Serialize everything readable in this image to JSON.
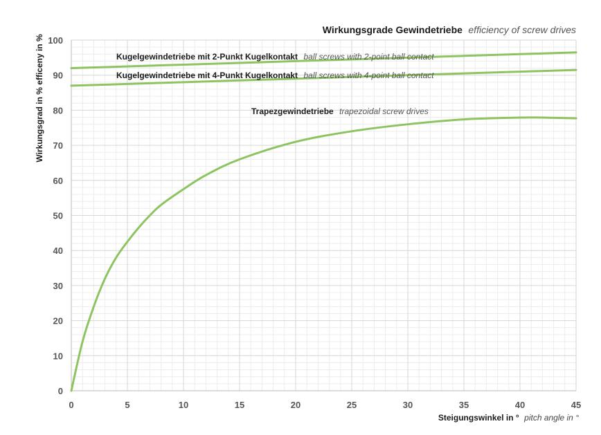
{
  "chart_data": {
    "type": "line",
    "title": "Wirkungsgrade Gewindetriebe",
    "subtitle": "efficiency of screw drives",
    "xlabel": "Steigungswinkel in °",
    "xlabel_en": "pitch angle in °",
    "ylabel": "Wirkungsgrad in % efficeny in %",
    "xlim": [
      0,
      45
    ],
    "ylim": [
      0,
      100
    ],
    "x_ticks": [
      "0",
      "5",
      "10",
      "15",
      "20",
      "25",
      "30",
      "35",
      "40",
      "45"
    ],
    "y_ticks": [
      "0",
      "10",
      "20",
      "30",
      "40",
      "50",
      "60",
      "70",
      "80",
      "90",
      "100"
    ],
    "grid": true,
    "line_color": "#8dc461",
    "series": [
      {
        "name": "Kugelgewindetriebe mit 2-Punkt Kugelkontakt",
        "name_en": "ball screws with 2-point ball contact",
        "x": [
          0,
          5,
          10,
          15,
          20,
          25,
          30,
          35,
          40,
          45
        ],
        "values": [
          92.0,
          92.5,
          93.0,
          93.5,
          94.0,
          94.5,
          95.0,
          95.5,
          96.0,
          96.5
        ]
      },
      {
        "name": "Kugelgewindetriebe mit 4-Punkt Kugelkontakt",
        "name_en": "ball screws with 4-point ball contact",
        "x": [
          0,
          5,
          10,
          15,
          20,
          25,
          30,
          35,
          40,
          45
        ],
        "values": [
          87.0,
          87.5,
          88.0,
          88.5,
          89.0,
          89.5,
          90.0,
          90.5,
          91.0,
          91.5
        ]
      },
      {
        "name": "Trapezgewindetriebe",
        "name_en": "trapezoidal screw drives",
        "x": [
          0,
          1,
          2,
          3,
          4,
          5,
          6,
          7,
          8,
          10,
          12,
          15,
          20,
          25,
          30,
          35,
          40,
          42,
          45
        ],
        "values": [
          0,
          14,
          24,
          32,
          38,
          42.5,
          46.5,
          50,
          53,
          57.5,
          61.5,
          66,
          71,
          74,
          76,
          77.4,
          77.9,
          77.9,
          77.7
        ]
      }
    ]
  }
}
